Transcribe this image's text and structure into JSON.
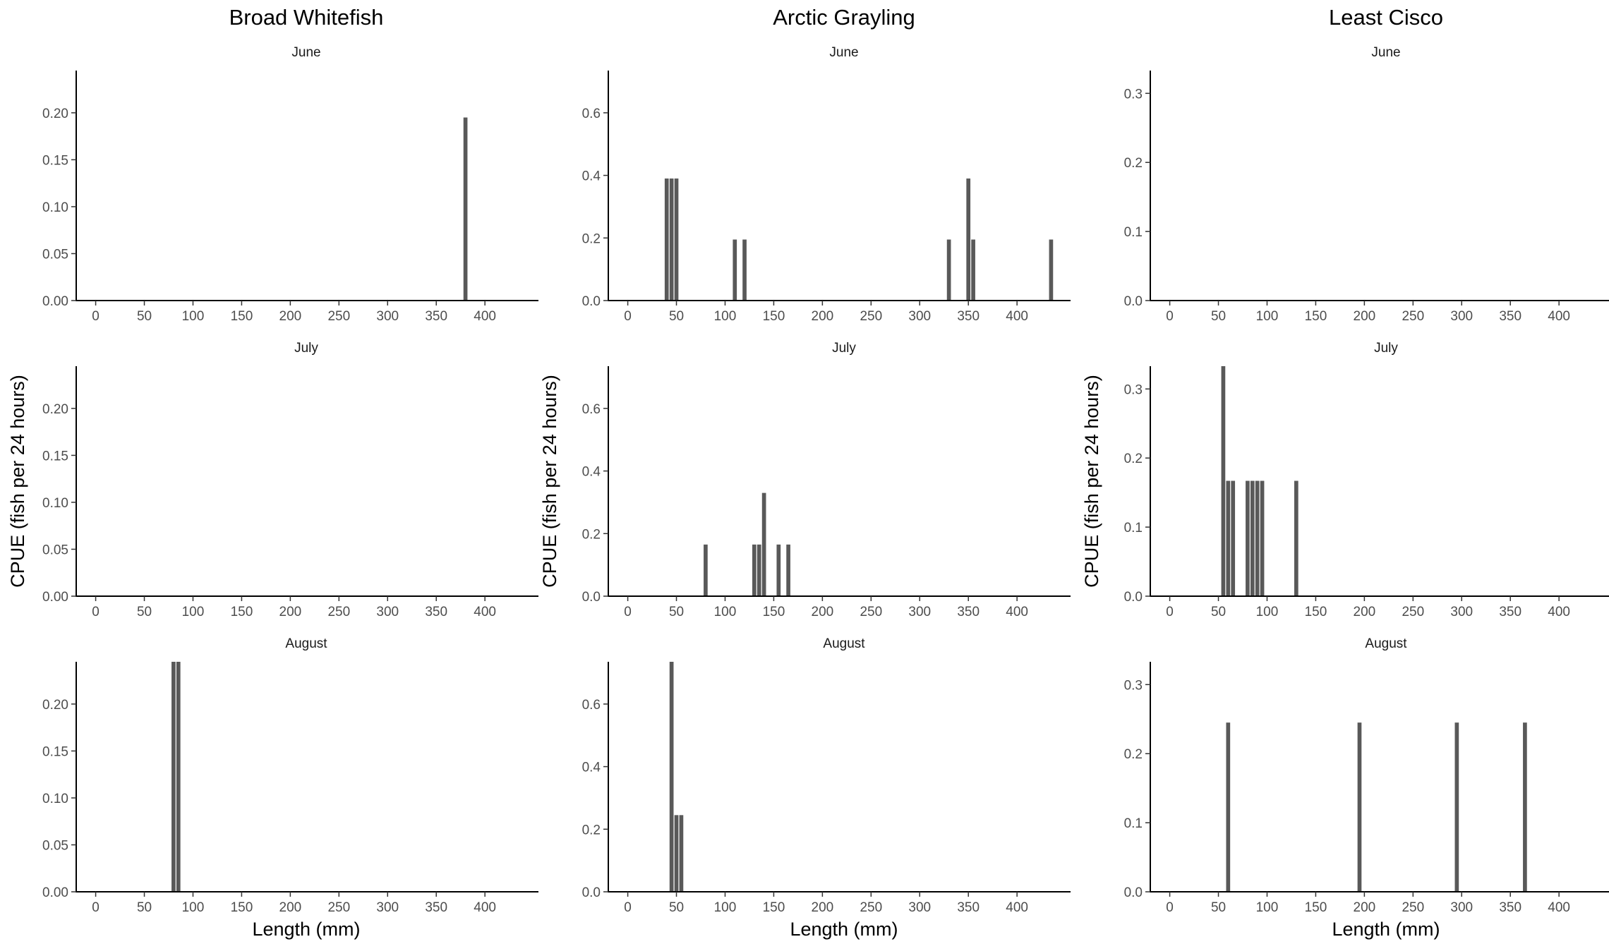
{
  "chart_data": {
    "type": "bar",
    "layout": "faceted grid, 3 columns (species) x 3 rows (months)",
    "xlabel": "Length (mm)",
    "ylabel": "CPUE (fish per 24 hours)",
    "x_ticks": [
      0,
      50,
      100,
      150,
      200,
      250,
      300,
      350,
      400
    ],
    "xlim": [
      -20,
      455
    ],
    "bar_width_mm": 5,
    "bar_color": "#595959",
    "grid": false,
    "species": [
      {
        "name": "Broad Whitefish",
        "ylim": [
          0,
          0.245
        ],
        "y_ticks": [
          "0.00",
          "0.05",
          "0.10",
          "0.15",
          "0.20"
        ],
        "panels": [
          {
            "month": "June",
            "bars": [
              {
                "x": 380,
                "y": 0.195
              }
            ]
          },
          {
            "month": "July",
            "bars": []
          },
          {
            "month": "August",
            "bars": [
              {
                "x": 80,
                "y": 0.245
              },
              {
                "x": 85,
                "y": 0.245
              }
            ]
          }
        ]
      },
      {
        "name": "Arctic Grayling",
        "ylim": [
          0,
          0.735
        ],
        "y_ticks": [
          "0.0",
          "0.2",
          "0.4",
          "0.6"
        ],
        "panels": [
          {
            "month": "June",
            "bars": [
              {
                "x": 40,
                "y": 0.39
              },
              {
                "x": 45,
                "y": 0.39
              },
              {
                "x": 50,
                "y": 0.39
              },
              {
                "x": 110,
                "y": 0.195
              },
              {
                "x": 120,
                "y": 0.195
              },
              {
                "x": 330,
                "y": 0.195
              },
              {
                "x": 350,
                "y": 0.39
              },
              {
                "x": 355,
                "y": 0.195
              },
              {
                "x": 435,
                "y": 0.195
              }
            ]
          },
          {
            "month": "July",
            "bars": [
              {
                "x": 80,
                "y": 0.165
              },
              {
                "x": 130,
                "y": 0.165
              },
              {
                "x": 135,
                "y": 0.165
              },
              {
                "x": 140,
                "y": 0.33
              },
              {
                "x": 155,
                "y": 0.165
              },
              {
                "x": 165,
                "y": 0.165
              }
            ]
          },
          {
            "month": "August",
            "bars": [
              {
                "x": 45,
                "y": 0.735
              },
              {
                "x": 50,
                "y": 0.245
              },
              {
                "x": 55,
                "y": 0.245
              }
            ]
          }
        ]
      },
      {
        "name": "Least Cisco",
        "ylim": [
          0,
          0.333
        ],
        "y_ticks": [
          "0.0",
          "0.1",
          "0.2",
          "0.3"
        ],
        "panels": [
          {
            "month": "June",
            "bars": []
          },
          {
            "month": "July",
            "bars": [
              {
                "x": 55,
                "y": 0.333
              },
              {
                "x": 60,
                "y": 0.167
              },
              {
                "x": 65,
                "y": 0.167
              },
              {
                "x": 80,
                "y": 0.167
              },
              {
                "x": 85,
                "y": 0.167
              },
              {
                "x": 90,
                "y": 0.167
              },
              {
                "x": 95,
                "y": 0.167
              },
              {
                "x": 130,
                "y": 0.167
              }
            ]
          },
          {
            "month": "August",
            "bars": [
              {
                "x": 60,
                "y": 0.245
              },
              {
                "x": 195,
                "y": 0.245
              },
              {
                "x": 295,
                "y": 0.245
              },
              {
                "x": 365,
                "y": 0.245
              }
            ]
          }
        ]
      }
    ]
  }
}
